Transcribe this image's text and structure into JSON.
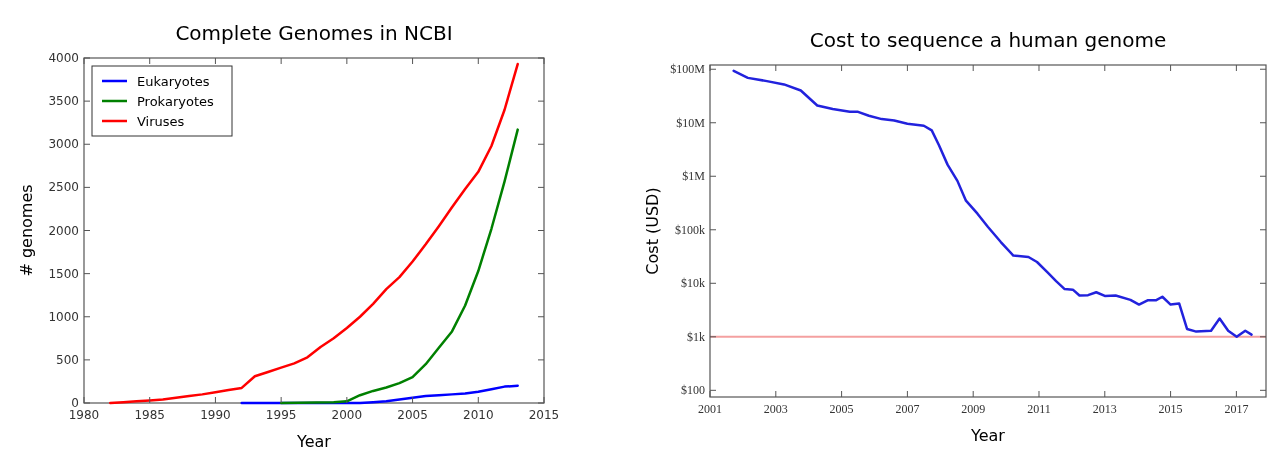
{
  "chart_data": [
    {
      "type": "line",
      "title": "Complete Genomes in NCBI",
      "xlabel": "Year",
      "ylabel": "# genomes",
      "xlim": [
        1980,
        2015
      ],
      "xticks": [
        1980,
        1985,
        1990,
        1995,
        2000,
        2005,
        2010,
        2015
      ],
      "ylim": [
        0,
        4000
      ],
      "yticks": [
        0,
        500,
        1000,
        1500,
        2000,
        2500,
        3000,
        3500,
        4000
      ],
      "legend": "top left",
      "series": [
        {
          "name": "Eukaryotes",
          "color": "#0000ff",
          "x": [
            1992,
            2001,
            2002,
            2003,
            2004,
            2005,
            2006,
            2007,
            2008,
            2009,
            2010,
            2011,
            2012,
            2013
          ],
          "values": [
            0,
            0,
            10,
            20,
            40,
            60,
            80,
            90,
            100,
            110,
            130,
            160,
            190,
            200
          ]
        },
        {
          "name": "Prokaryotes",
          "color": "#008000",
          "x": [
            1995,
            1999,
            2000,
            2001,
            2002,
            2003,
            2004,
            2005,
            2006,
            2007,
            2008,
            2009,
            2010,
            2011,
            2012,
            2013
          ],
          "values": [
            0,
            10,
            20,
            90,
            140,
            180,
            230,
            300,
            450,
            640,
            830,
            1130,
            1530,
            2020,
            2570,
            3170
          ]
        },
        {
          "name": "Viruses",
          "color": "#ff0000",
          "x": [
            1982,
            1983,
            1984,
            1985,
            1986,
            1987,
            1988,
            1989,
            1990,
            1991,
            1992,
            1993,
            1994,
            1995,
            1996,
            1997,
            1998,
            1999,
            2000,
            2001,
            2002,
            2003,
            2004,
            2005,
            2006,
            2007,
            2008,
            2009,
            2010,
            2011,
            2012,
            2013
          ],
          "values": [
            0,
            10,
            20,
            30,
            40,
            60,
            80,
            100,
            125,
            150,
            175,
            310,
            360,
            410,
            460,
            530,
            650,
            750,
            870,
            1000,
            1150,
            1320,
            1460,
            1640,
            1840,
            2050,
            2270,
            2480,
            2680,
            2980,
            3400,
            3930
          ]
        }
      ]
    },
    {
      "type": "line",
      "title": "Cost to sequence a human genome",
      "xlabel": "Year",
      "ylabel": "Cost (USD)",
      "log": "y",
      "xlim": [
        2001,
        2017.9
      ],
      "xticks": [
        2001,
        2003,
        2005,
        2007,
        2009,
        2011,
        2013,
        2015,
        2017
      ],
      "ylim": [
        75,
        120000000
      ],
      "yticks": [
        {
          "value": 100,
          "label": "$100"
        },
        {
          "value": 1000,
          "label": "$1k"
        },
        {
          "value": 10000,
          "label": "$10k"
        },
        {
          "value": 100000,
          "label": "$100k"
        },
        {
          "value": 1000000,
          "label": "$1M"
        },
        {
          "value": 10000000,
          "label": "$10M"
        },
        {
          "value": 100000000,
          "label": "$100M"
        }
      ],
      "ref_lines": [
        {
          "axis": "y",
          "value": 1000,
          "color": "#f4a0a0"
        }
      ],
      "series": [
        {
          "color": "#2222dd",
          "x": [
            2001.72,
            2002.15,
            2002.73,
            2003.25,
            2003.76,
            2004.26,
            2004.73,
            2005.25,
            2005.5,
            2005.83,
            2006.22,
            2006.6,
            2007.0,
            2007.38,
            2007.5,
            2007.74,
            2007.96,
            2008.22,
            2008.52,
            2008.78,
            2009.13,
            2009.45,
            2009.84,
            2010.22,
            2010.68,
            2010.94,
            2011.26,
            2011.52,
            2011.78,
            2012.03,
            2012.23,
            2012.49,
            2012.74,
            2013.0,
            2013.33,
            2013.78,
            2014.04,
            2014.3,
            2014.55,
            2014.75,
            2015.0,
            2015.26,
            2015.5,
            2015.78,
            2016.23,
            2016.49,
            2016.75,
            2017.01,
            2017.27,
            2017.46
          ],
          "values": [
            93000000,
            69000000,
            60000000,
            52000000,
            40000000,
            21000000,
            18000000,
            16000000,
            16000000,
            13500000,
            11700000,
            11000000,
            9600000,
            9000000,
            8800000,
            7200000,
            3800000,
            1650000,
            820000,
            350000,
            200000,
            113000,
            59000,
            33000,
            31000,
            25000,
            16000,
            11000,
            7800,
            7600,
            5900,
            6000,
            6800,
            5800,
            5900,
            4900,
            4000,
            4800,
            4800,
            5600,
            4000,
            4200,
            1400,
            1250,
            1300,
            2200,
            1300,
            1000,
            1300,
            1100
          ]
        }
      ]
    }
  ]
}
